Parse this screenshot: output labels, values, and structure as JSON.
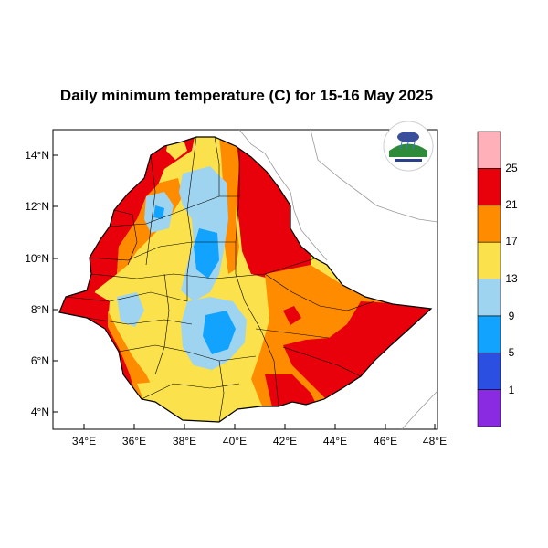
{
  "title": "Daily minimum temperature (C) for 15-16 May 2025",
  "x_axis": {
    "ticks": [
      "34°E",
      "36°E",
      "38°E",
      "40°E",
      "42°E",
      "44°E",
      "46°E",
      "48°E"
    ]
  },
  "y_axis": {
    "ticks": [
      "14°N",
      "12°N",
      "10°N",
      "8°N",
      "6°N",
      "4°N"
    ]
  },
  "colorbar": {
    "labels": [
      "1",
      "5",
      "9",
      "13",
      "17",
      "21",
      "25"
    ],
    "colors": [
      "#8a2be2",
      "#2b4fe0",
      "#12a3ff",
      "#9fd4f0",
      "#fbe14b",
      "#ff8c00",
      "#e8000b",
      "#ffb0b8"
    ]
  },
  "logo": {
    "name": "ethiopia-meteorology-institute-logo"
  }
}
